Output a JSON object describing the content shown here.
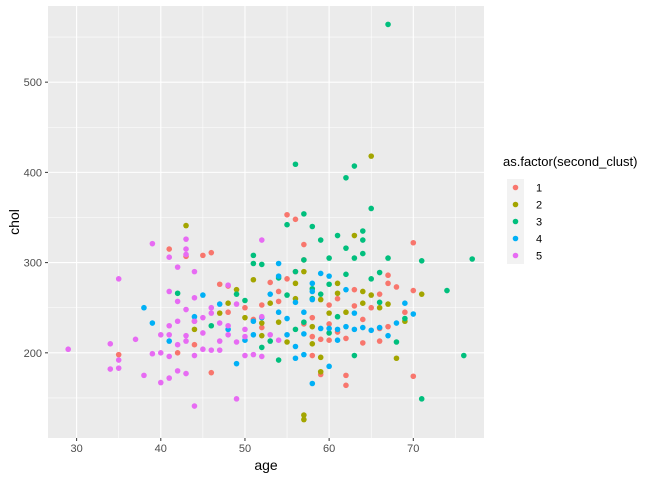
{
  "chart_data": {
    "type": "scatter",
    "title": "",
    "xlabel": "age",
    "ylabel": "chol",
    "xlim": [
      26.6,
      78.4
    ],
    "ylim": [
      105.6,
      584.4
    ],
    "x_ticks": [
      30,
      40,
      50,
      60,
      70
    ],
    "y_ticks": [
      200,
      300,
      400,
      500
    ],
    "grid": true,
    "legend": {
      "title": "as.factor(second_clust)",
      "placement": "right"
    },
    "series": [
      {
        "name": "1",
        "color": "#F8766D",
        "points": [
          [
            35,
            198
          ],
          [
            41,
            315
          ],
          [
            43,
            307
          ],
          [
            44,
            235
          ],
          [
            45,
            308
          ],
          [
            46,
            311
          ],
          [
            47,
            276
          ],
          [
            48,
            274
          ],
          [
            50,
            250
          ],
          [
            51,
            237
          ],
          [
            52,
            253
          ],
          [
            53,
            278
          ],
          [
            54,
            257
          ],
          [
            55,
            353
          ],
          [
            55,
            282
          ],
          [
            56,
            348
          ],
          [
            56,
            290
          ],
          [
            57,
            303
          ],
          [
            57,
            320
          ],
          [
            57,
            232
          ],
          [
            58,
            218
          ],
          [
            58,
            239
          ],
          [
            59,
            176
          ],
          [
            59,
            215
          ],
          [
            60,
            253
          ],
          [
            60,
            232
          ],
          [
            61,
            260
          ],
          [
            61,
            223
          ],
          [
            62,
            175
          ],
          [
            62,
            164
          ],
          [
            63,
            270
          ],
          [
            63,
            252
          ],
          [
            64,
            211
          ],
          [
            64,
            237
          ],
          [
            65,
            250
          ],
          [
            66,
            213
          ],
          [
            66,
            265
          ],
          [
            67,
            286
          ],
          [
            67,
            277
          ],
          [
            68,
            273
          ],
          [
            69,
            245
          ],
          [
            70,
            322
          ],
          [
            70,
            269
          ],
          [
            70,
            174
          ],
          [
            42,
            200
          ],
          [
            44,
            209
          ],
          [
            46,
            178
          ],
          [
            48,
            245
          ],
          [
            52,
            228
          ],
          [
            54,
            268
          ],
          [
            58,
            197
          ],
          [
            60,
            214
          ],
          [
            62,
            216
          ],
          [
            66,
            227
          ],
          [
            67,
            229
          ]
        ]
      },
      {
        "name": "2",
        "color": "#A3A500",
        "points": [
          [
            43,
            341
          ],
          [
            44,
            226
          ],
          [
            47,
            244
          ],
          [
            48,
            255
          ],
          [
            49,
            270
          ],
          [
            50,
            239
          ],
          [
            51,
            281
          ],
          [
            52,
            233
          ],
          [
            53,
            255
          ],
          [
            54,
            234
          ],
          [
            55,
            212
          ],
          [
            56,
            260
          ],
          [
            57,
            290
          ],
          [
            57,
            126
          ],
          [
            57,
            131
          ],
          [
            58,
            229
          ],
          [
            58,
            210
          ],
          [
            59,
            259
          ],
          [
            59,
            179
          ],
          [
            60,
            244
          ],
          [
            61,
            266
          ],
          [
            62,
            245
          ],
          [
            63,
            330
          ],
          [
            64,
            255
          ],
          [
            65,
            418
          ],
          [
            65,
            264
          ],
          [
            66,
            250
          ],
          [
            67,
            254
          ],
          [
            68,
            194
          ],
          [
            69,
            235
          ],
          [
            71,
            265
          ],
          [
            52,
            219
          ],
          [
            56,
            277
          ],
          [
            59,
            195
          ],
          [
            61,
            277
          ],
          [
            64,
            268
          ]
        ]
      },
      {
        "name": "3",
        "color": "#00BF7D",
        "points": [
          [
            42,
            266
          ],
          [
            46,
            230
          ],
          [
            49,
            265
          ],
          [
            50,
            258
          ],
          [
            51,
            308
          ],
          [
            51,
            299
          ],
          [
            52,
            298
          ],
          [
            53,
            213
          ],
          [
            54,
            283
          ],
          [
            54,
            192
          ],
          [
            55,
            342
          ],
          [
            55,
            264
          ],
          [
            56,
            409
          ],
          [
            56,
            290
          ],
          [
            57,
            354
          ],
          [
            57,
            303
          ],
          [
            57,
            234
          ],
          [
            58,
            340
          ],
          [
            58,
            271
          ],
          [
            59,
            265
          ],
          [
            59,
            325
          ],
          [
            60,
            305
          ],
          [
            60,
            276
          ],
          [
            61,
            330
          ],
          [
            61,
            240
          ],
          [
            62,
            394
          ],
          [
            62,
            316
          ],
          [
            63,
            407
          ],
          [
            63,
            197
          ],
          [
            63,
            305
          ],
          [
            64,
            335
          ],
          [
            64,
            325
          ],
          [
            64,
            310
          ],
          [
            65,
            360
          ],
          [
            65,
            282
          ],
          [
            66,
            256
          ],
          [
            67,
            564
          ],
          [
            67,
            305
          ],
          [
            68,
            212
          ],
          [
            69,
            238
          ],
          [
            71,
            302
          ],
          [
            71,
            149
          ],
          [
            74,
            269
          ],
          [
            76,
            197
          ],
          [
            77,
            304
          ],
          [
            52,
            206
          ],
          [
            56,
            226
          ],
          [
            58,
            260
          ],
          [
            60,
            222
          ],
          [
            62,
            287
          ],
          [
            66,
            289
          ]
        ]
      },
      {
        "name": "4",
        "color": "#00B0F6",
        "points": [
          [
            38,
            250
          ],
          [
            39,
            233
          ],
          [
            41,
            213
          ],
          [
            44,
            240
          ],
          [
            45,
            264
          ],
          [
            47,
            254
          ],
          [
            48,
            226
          ],
          [
            49,
            188
          ],
          [
            50,
            214
          ],
          [
            51,
            235
          ],
          [
            51,
            220
          ],
          [
            52,
            239
          ],
          [
            53,
            265
          ],
          [
            54,
            245
          ],
          [
            54,
            299
          ],
          [
            55,
            238
          ],
          [
            55,
            220
          ],
          [
            56,
            194
          ],
          [
            56,
            256
          ],
          [
            57,
            245
          ],
          [
            57,
            198
          ],
          [
            57,
            221
          ],
          [
            58,
            259
          ],
          [
            58,
            277
          ],
          [
            58,
            268
          ],
          [
            59,
            288
          ],
          [
            59,
            227
          ],
          [
            60,
            285
          ],
          [
            60,
            227
          ],
          [
            61,
            226
          ],
          [
            61,
            214
          ],
          [
            62,
            229
          ],
          [
            62,
            270
          ],
          [
            63,
            244
          ],
          [
            63,
            226
          ],
          [
            64,
            228
          ],
          [
            65,
            225
          ],
          [
            66,
            228
          ],
          [
            67,
            219
          ],
          [
            68,
            233
          ],
          [
            69,
            255
          ],
          [
            70,
            243
          ],
          [
            60,
            185
          ],
          [
            58,
            166
          ],
          [
            54,
            285
          ],
          [
            56,
            207
          ]
        ]
      },
      {
        "name": "5",
        "color": "#E76BF3",
        "points": [
          [
            29,
            204
          ],
          [
            34,
            210
          ],
          [
            34,
            182
          ],
          [
            35,
            282
          ],
          [
            35,
            183
          ],
          [
            35,
            192
          ],
          [
            37,
            215
          ],
          [
            38,
            175
          ],
          [
            39,
            321
          ],
          [
            39,
            199
          ],
          [
            40,
            220
          ],
          [
            40,
            200
          ],
          [
            40,
            167
          ],
          [
            41,
            230
          ],
          [
            41,
            220
          ],
          [
            41,
            196
          ],
          [
            41,
            172
          ],
          [
            41,
            306
          ],
          [
            41,
            268
          ],
          [
            42,
            257
          ],
          [
            42,
            235
          ],
          [
            42,
            209
          ],
          [
            42,
            180
          ],
          [
            42,
            295
          ],
          [
            43,
            326
          ],
          [
            43,
            315
          ],
          [
            43,
            309
          ],
          [
            43,
            248
          ],
          [
            43,
            219
          ],
          [
            43,
            213
          ],
          [
            43,
            177
          ],
          [
            44,
            197
          ],
          [
            44,
            141
          ],
          [
            44,
            235
          ],
          [
            44,
            290
          ],
          [
            45,
            204
          ],
          [
            45,
            222
          ],
          [
            45,
            239
          ],
          [
            46,
            203
          ],
          [
            46,
            244
          ],
          [
            47,
            203
          ],
          [
            47,
            213
          ],
          [
            47,
            233
          ],
          [
            48,
            220
          ],
          [
            48,
            230
          ],
          [
            48,
            275
          ],
          [
            49,
            149
          ],
          [
            49,
            212
          ],
          [
            49,
            254
          ],
          [
            50,
            197
          ],
          [
            50,
            218
          ],
          [
            51,
            198
          ],
          [
            52,
            325
          ],
          [
            52,
            240
          ],
          [
            52,
            196
          ],
          [
            53,
            220
          ],
          [
            54,
            214
          ],
          [
            44,
            261
          ],
          [
            46,
            250
          ],
          [
            50,
            226
          ]
        ]
      }
    ]
  }
}
